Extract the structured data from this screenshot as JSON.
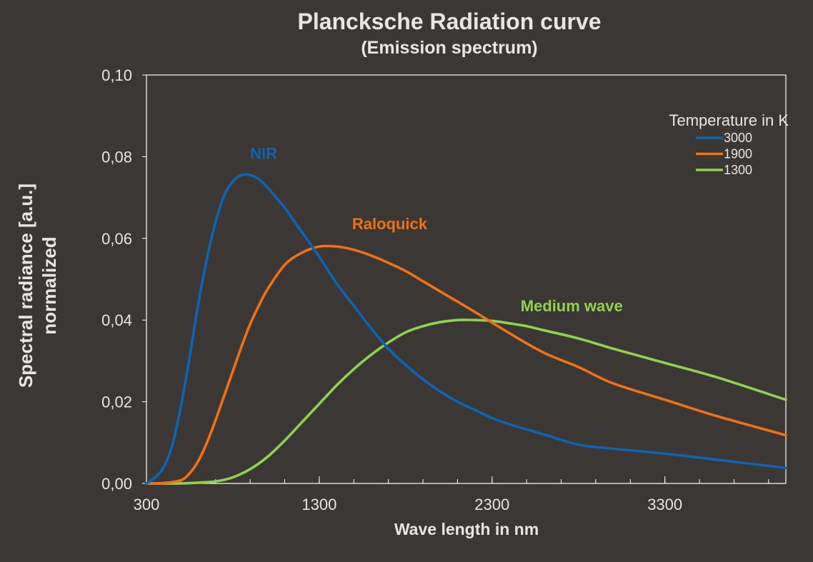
{
  "chart_data": {
    "type": "line",
    "title": "Plancksche Radiation curve",
    "subtitle": "(Emission spectrum)",
    "xlabel": "Wave length in nm",
    "ylabel": "Spectral radiance [a.u.]",
    "ylabel2": "normalized",
    "xlim": [
      300,
      4000
    ],
    "ylim": [
      0,
      0.1
    ],
    "x_ticks": [
      300,
      1300,
      2300,
      3300
    ],
    "x_tick_labels": [
      "300",
      "1300",
      "2300",
      "3300"
    ],
    "y_ticks": [
      0,
      0.02,
      0.04,
      0.06,
      0.08,
      0.1
    ],
    "y_tick_labels": [
      "0,00",
      "0,02",
      "0,04",
      "0,06",
      "0,08",
      "0,10"
    ],
    "grid": false,
    "legend": {
      "title": "Temperature in K",
      "position": "top-right"
    },
    "series": [
      {
        "name": "3000",
        "color": "#0f63b0",
        "x": [
          300,
          350,
          400,
          450,
          500,
          550,
          600,
          650,
          700,
          750,
          800,
          850,
          900,
          950,
          1000,
          1050,
          1100,
          1150,
          1200,
          1300,
          1400,
          1500,
          1600,
          1700,
          1800,
          1900,
          2000,
          2100,
          2200,
          2300,
          2400,
          2600,
          2800,
          3000,
          3300,
          3600,
          4000
        ],
        "values": [
          0.0,
          0.0015,
          0.004,
          0.0095,
          0.019,
          0.031,
          0.044,
          0.055,
          0.064,
          0.0705,
          0.074,
          0.0755,
          0.0755,
          0.0745,
          0.0725,
          0.07,
          0.0675,
          0.0645,
          0.0615,
          0.0555,
          0.049,
          0.0435,
          0.038,
          0.033,
          0.029,
          0.0255,
          0.0225,
          0.02,
          0.018,
          0.016,
          0.0145,
          0.012,
          0.0095,
          0.0085,
          0.0073,
          0.0058,
          0.0038
        ]
      },
      {
        "name": "1900",
        "color": "#f07115",
        "x": [
          300,
          400,
          500,
          550,
          600,
          650,
          700,
          750,
          800,
          850,
          900,
          950,
          1000,
          1100,
          1200,
          1300,
          1400,
          1500,
          1600,
          1700,
          1800,
          1900,
          2000,
          2200,
          2400,
          2600,
          2800,
          3000,
          3300,
          3600,
          4000
        ],
        "values": [
          0.0,
          0.0001,
          0.0008,
          0.0025,
          0.0055,
          0.01,
          0.0155,
          0.0215,
          0.0275,
          0.0335,
          0.039,
          0.0435,
          0.0475,
          0.0535,
          0.0565,
          0.058,
          0.058,
          0.0572,
          0.0558,
          0.054,
          0.052,
          0.0495,
          0.047,
          0.042,
          0.0368,
          0.032,
          0.0285,
          0.0245,
          0.0205,
          0.0165,
          0.0118
        ]
      },
      {
        "name": "1300",
        "color": "#92d050",
        "x": [
          300,
          500,
          600,
          700,
          800,
          900,
          1000,
          1100,
          1200,
          1300,
          1400,
          1500,
          1600,
          1700,
          1800,
          1900,
          2000,
          2100,
          2200,
          2300,
          2400,
          2500,
          2600,
          2800,
          3000,
          3300,
          3600,
          4000
        ],
        "values": [
          0.0,
          0.0,
          0.0002,
          0.0005,
          0.0015,
          0.0035,
          0.0065,
          0.0105,
          0.015,
          0.0195,
          0.024,
          0.028,
          0.0315,
          0.0345,
          0.037,
          0.0385,
          0.0395,
          0.04,
          0.04,
          0.0398,
          0.0392,
          0.0385,
          0.0375,
          0.0355,
          0.033,
          0.0295,
          0.026,
          0.0205
        ]
      }
    ],
    "annotations": [
      {
        "text": "NIR",
        "x": 900,
        "y": 0.0795,
        "color": "#0f63b0"
      },
      {
        "text": "Raloquick",
        "x": 1490,
        "y": 0.0622,
        "color": "#f07115"
      },
      {
        "text": "Medium wave",
        "x": 2465,
        "y": 0.0421,
        "color": "#92d050"
      }
    ]
  }
}
